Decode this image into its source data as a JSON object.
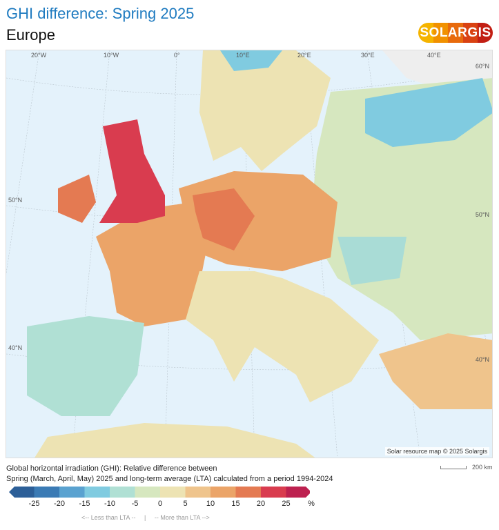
{
  "header": {
    "title": "GHI difference: Spring 2025",
    "region": "Europe"
  },
  "logo": {
    "text": "SOLARGIS",
    "colors": [
      "#f5b400",
      "#f19100",
      "#e86a0c",
      "#d94212",
      "#c21f14"
    ]
  },
  "map": {
    "longitude_labels": [
      "20°W",
      "10°W",
      "0°",
      "10°E",
      "20°E",
      "30°E",
      "40°E"
    ],
    "latitude_labels_left": [
      "50°N",
      "40°N"
    ],
    "latitude_labels_right": [
      "60°N",
      "50°N",
      "40°N"
    ],
    "credit": "Solar resource map © 2025 Solargis"
  },
  "description": {
    "line1": "Global horizontal irradiation (GHI): Relative difference between",
    "line2": "Spring (March, April, May) 2025 and long-term average (LTA) calculated from a period 1994-2024"
  },
  "scale_bar": {
    "label": "200 km"
  },
  "legend": {
    "colors": [
      "#2c5f98",
      "#3b7bb5",
      "#5aa2d0",
      "#80cbe0",
      "#b0e0d4",
      "#d6e7bf",
      "#ede3b3",
      "#efc48c",
      "#eba468",
      "#e47a52",
      "#d93c4f",
      "#bd2150"
    ],
    "ticks": [
      "-25",
      "-20",
      "-15",
      "-10",
      "-5",
      "0",
      "5",
      "10",
      "15",
      "20",
      "25",
      "%"
    ],
    "less": "<-- Less than LTA --",
    "sep": "|",
    "more": "-- More than LTA -->"
  }
}
